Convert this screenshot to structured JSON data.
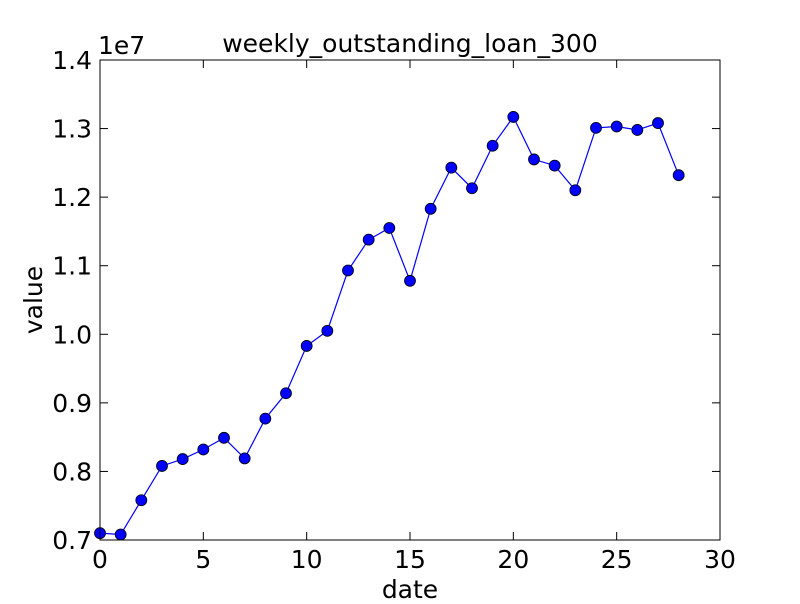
{
  "chart_data": {
    "type": "line",
    "title": "weekly_outstanding_loan_300",
    "xlabel": "date",
    "ylabel": "value",
    "offset_label": "1e7",
    "xlim": [
      0,
      30
    ],
    "ylim": [
      0.7,
      1.4
    ],
    "x_ticks": [
      0,
      5,
      10,
      15,
      20,
      25,
      30
    ],
    "x_tick_labels": [
      "0",
      "5",
      "10",
      "15",
      "20",
      "25",
      "30"
    ],
    "y_ticks": [
      0.7,
      0.8,
      0.9,
      1.0,
      1.1,
      1.2,
      1.3,
      1.4
    ],
    "y_tick_labels": [
      "0.7",
      "0.8",
      "0.9",
      "1.0",
      "1.1",
      "1.2",
      "1.3",
      "1.4"
    ],
    "grid": false,
    "series": [
      {
        "color": "#0000ff",
        "marker": "circle",
        "x": [
          0,
          1,
          2,
          3,
          4,
          5,
          6,
          7,
          8,
          9,
          10,
          11,
          12,
          13,
          14,
          15,
          16,
          17,
          18,
          19,
          20,
          21,
          22,
          23,
          24,
          25,
          26,
          27,
          28
        ],
        "y": [
          0.71,
          0.708,
          0.758,
          0.808,
          0.818,
          0.832,
          0.849,
          0.819,
          0.877,
          0.914,
          0.983,
          1.005,
          1.093,
          1.138,
          1.155,
          1.078,
          1.183,
          1.243,
          1.213,
          1.275,
          1.317,
          1.255,
          1.246,
          1.21,
          1.301,
          1.303,
          1.298,
          1.308,
          1.232
        ]
      }
    ]
  }
}
